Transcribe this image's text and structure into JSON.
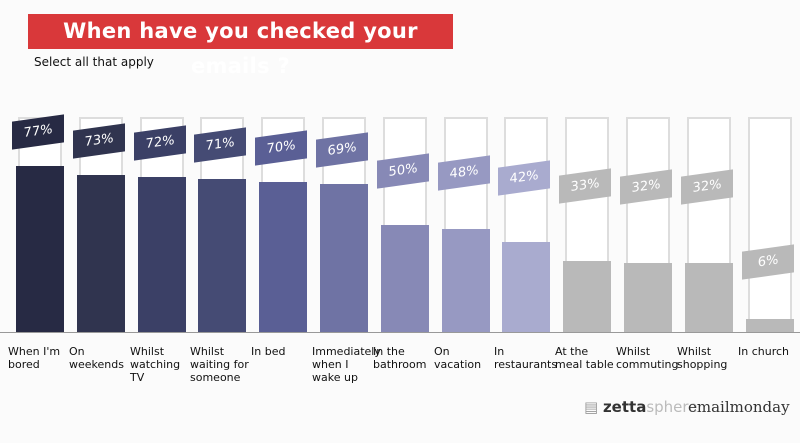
{
  "chart_data": {
    "type": "bar",
    "title": "When have you checked your emails ?",
    "subtitle": "Select all that apply",
    "categories": [
      "When I'm bored",
      "On weekends",
      "Whilst watching TV",
      "Whilst waiting for someone",
      "In bed",
      "Immediately when I wake up",
      "In the bathroom",
      "On vacation",
      "In restaurants",
      "At the meal table",
      "Whilst commuting",
      "Whilst shopping",
      "In church"
    ],
    "values": [
      77,
      73,
      72,
      71,
      70,
      69,
      50,
      48,
      42,
      33,
      32,
      32,
      6
    ],
    "labels": [
      "77%",
      "73%",
      "72%",
      "71%",
      "70%",
      "69%",
      "50%",
      "48%",
      "42%",
      "33%",
      "32%",
      "32%",
      "6%"
    ],
    "ylim": [
      0,
      100
    ],
    "colors": [
      "#272a44",
      "#30344f",
      "#3b4066",
      "#454b74",
      "#5a5f95",
      "#6f73a4",
      "#8789b6",
      "#9799c2",
      "#a9abcf",
      "#b9b9b9",
      "#b9b9b9",
      "#b9b9b9",
      "#b9b9b9"
    ]
  },
  "brands": {
    "zetta": "zetta",
    "sphere": "sphere",
    "emailmonday": "emailmonday"
  }
}
